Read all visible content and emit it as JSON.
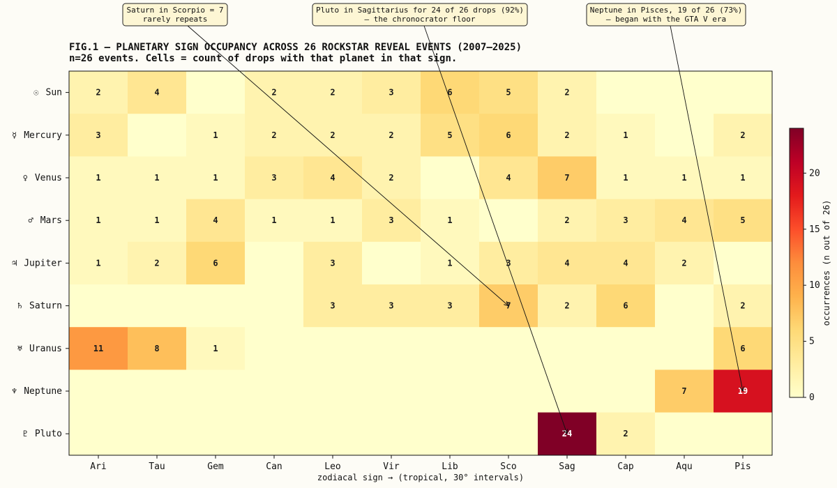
{
  "chart_data": {
    "type": "heatmap",
    "title": "FIG.1 — PLANETARY SIGN OCCUPANCY ACROSS 26 ROCKSTAR REVEAL EVENTS  (2007–2025)",
    "subtitle": "n=26 events. Cells = count of drops with that planet in that sign.",
    "xlabel": "zodiacal sign  →  (tropical, 30° intervals)",
    "ylabel": "",
    "x_categories": [
      "Ari",
      "Tau",
      "Gem",
      "Can",
      "Leo",
      "Vir",
      "Lib",
      "Sco",
      "Sag",
      "Cap",
      "Aqu",
      "Pis"
    ],
    "y_categories": [
      {
        "symbol": "☉",
        "name": "Sun"
      },
      {
        "symbol": "☿",
        "name": "Mercury"
      },
      {
        "symbol": "♀",
        "name": "Venus"
      },
      {
        "symbol": "♂",
        "name": "Mars"
      },
      {
        "symbol": "♃",
        "name": "Jupiter"
      },
      {
        "symbol": "♄",
        "name": "Saturn"
      },
      {
        "symbol": "♅",
        "name": "Uranus"
      },
      {
        "symbol": "♆",
        "name": "Neptune"
      },
      {
        "symbol": "♇",
        "name": "Pluto"
      }
    ],
    "values": [
      [
        2,
        4,
        0,
        2,
        2,
        3,
        6,
        5,
        2,
        0,
        0,
        0
      ],
      [
        3,
        0,
        1,
        2,
        2,
        2,
        5,
        6,
        2,
        1,
        0,
        2
      ],
      [
        1,
        1,
        1,
        3,
        4,
        2,
        0,
        4,
        7,
        1,
        1,
        1
      ],
      [
        1,
        1,
        4,
        1,
        1,
        3,
        1,
        0,
        2,
        3,
        4,
        5
      ],
      [
        1,
        2,
        6,
        0,
        3,
        0,
        1,
        3,
        4,
        4,
        2,
        0
      ],
      [
        0,
        0,
        0,
        0,
        3,
        3,
        3,
        7,
        2,
        6,
        0,
        2
      ],
      [
        11,
        8,
        1,
        0,
        0,
        0,
        0,
        0,
        0,
        0,
        0,
        6
      ],
      [
        0,
        0,
        0,
        0,
        0,
        0,
        0,
        0,
        0,
        0,
        7,
        19
      ],
      [
        0,
        0,
        0,
        0,
        0,
        0,
        0,
        0,
        24,
        2,
        0,
        0
      ]
    ],
    "colorbar": {
      "label": "occurrences (n out of 26)",
      "range": [
        0,
        24
      ],
      "ticks": [
        0,
        5,
        10,
        15,
        20
      ],
      "colormap": "YlOrRd",
      "colors": [
        "#ffffcc",
        "#ffeda0",
        "#fed976",
        "#feb24c",
        "#fd8d3c",
        "#fc4e2a",
        "#e31a1c",
        "#bd0026",
        "#800026"
      ]
    },
    "annotations": [
      {
        "lines": [
          "Saturn in Scorpio = 7",
          "rarely repeats"
        ],
        "target": {
          "row": "Saturn",
          "col": "Sco"
        }
      },
      {
        "lines": [
          "Pluto in Sagittarius for 24 of 26 drops (92%)",
          "— the chronocrator floor"
        ],
        "target": {
          "row": "Pluto",
          "col": "Sag"
        }
      },
      {
        "lines": [
          "Neptune in Pisces, 19 of 26 (73%)",
          "— began with the GTA V era"
        ],
        "target": {
          "row": "Neptune",
          "col": "Pis"
        }
      }
    ]
  }
}
